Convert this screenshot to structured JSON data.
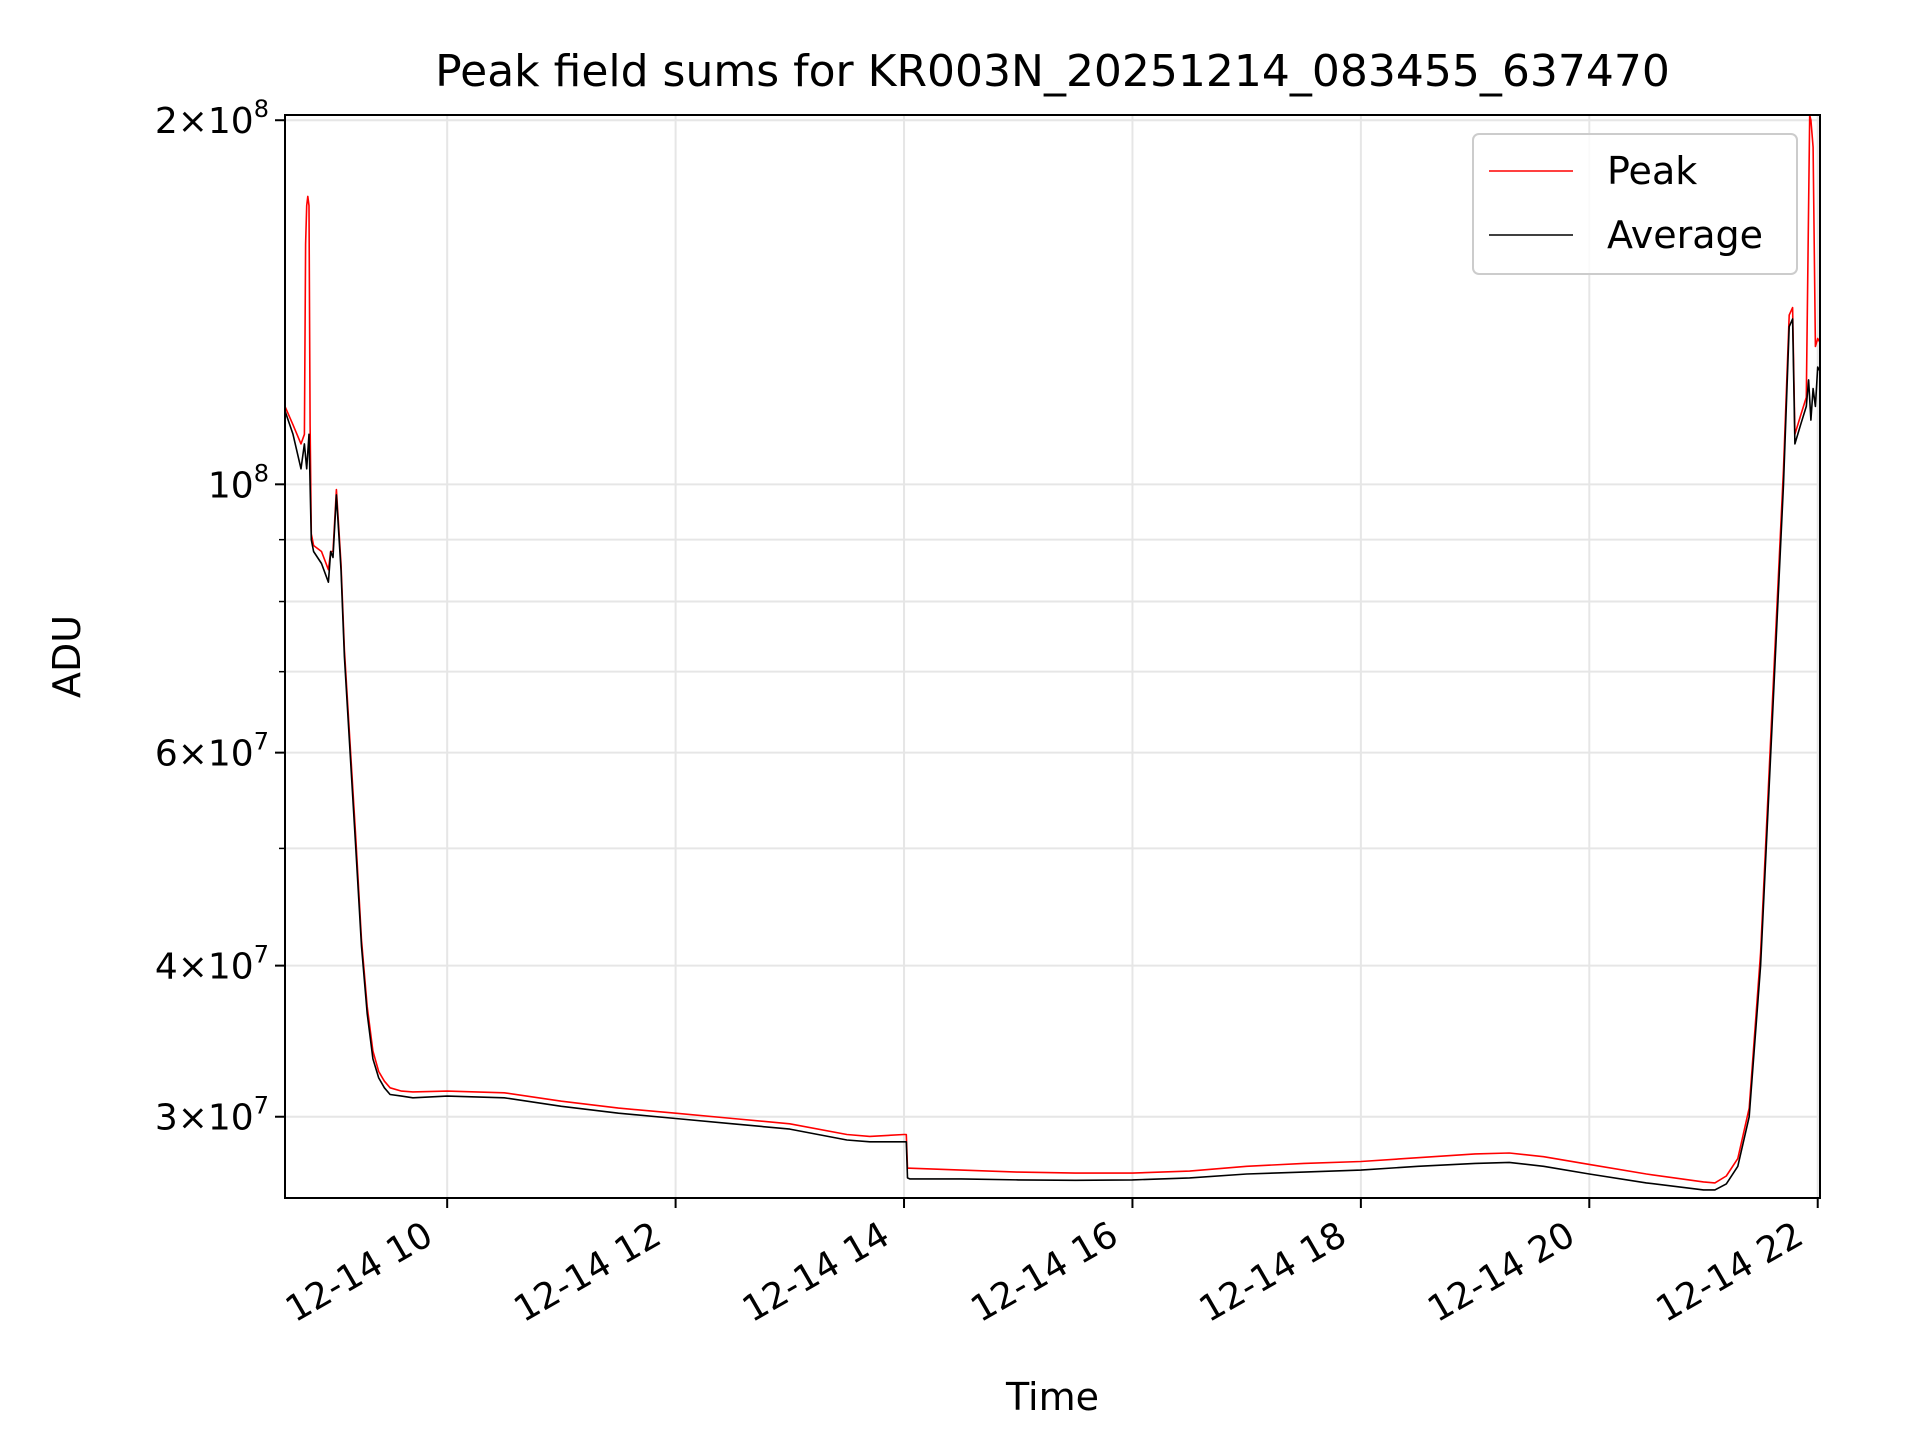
{
  "chart_data": {
    "type": "line",
    "title": "Peak field sums for KR003N_20251214_083455_637470",
    "xlabel": "Time",
    "ylabel": "ADU",
    "yscale": "log",
    "xlim": [
      8.58,
      22.02
    ],
    "ylim": [
      25700000,
      202000000
    ],
    "grid": true,
    "legend_position": "top-right",
    "x_ticks": [
      {
        "value": 10,
        "label": "12-14 10"
      },
      {
        "value": 12,
        "label": "12-14 12"
      },
      {
        "value": 14,
        "label": "12-14 14"
      },
      {
        "value": 16,
        "label": "12-14 16"
      },
      {
        "value": 18,
        "label": "12-14 18"
      },
      {
        "value": 20,
        "label": "12-14 20"
      },
      {
        "value": 22,
        "label": "12-14 22"
      }
    ],
    "y_ticks": [
      {
        "value": 30000000,
        "mantissa": "3",
        "exponent": "7"
      },
      {
        "value": 40000000,
        "mantissa": "4",
        "exponent": "7"
      },
      {
        "value": 60000000,
        "mantissa": "6",
        "exponent": "7"
      },
      {
        "value": 100000000,
        "mantissa": "",
        "exponent": "8"
      },
      {
        "value": 200000000,
        "mantissa": "2",
        "exponent": "8"
      }
    ],
    "y_minor_ticks": [
      50000000,
      70000000,
      80000000,
      90000000
    ],
    "series": [
      {
        "name": "Average",
        "color": "#000000",
        "x": [
          8.58,
          8.65,
          8.72,
          8.75,
          8.77,
          8.79,
          8.81,
          8.83,
          8.9,
          8.96,
          8.98,
          9.0,
          9.03,
          9.07,
          9.1,
          9.15,
          9.2,
          9.25,
          9.3,
          9.35,
          9.4,
          9.45,
          9.5,
          9.6,
          9.7,
          10.0,
          10.5,
          11.0,
          11.5,
          12.0,
          12.5,
          13.0,
          13.5,
          13.7,
          14.0,
          14.02,
          14.03,
          14.05,
          14.5,
          15.0,
          15.5,
          16.0,
          16.5,
          17.0,
          17.5,
          18.0,
          18.5,
          19.0,
          19.3,
          19.6,
          20.0,
          20.5,
          21.0,
          21.1,
          21.2,
          21.3,
          21.4,
          21.5,
          21.6,
          21.7,
          21.75,
          21.78,
          21.8,
          21.85,
          21.9,
          21.92,
          21.94,
          21.96,
          21.98,
          22.0,
          22.02
        ],
        "y": [
          115000000,
          110000000,
          103000000,
          108000000,
          103000000,
          110000000,
          90000000,
          88000000,
          86000000,
          83000000,
          88000000,
          87000000,
          98000000,
          85000000,
          72000000,
          60000000,
          50000000,
          41500000,
          36500000,
          33500000,
          32300000,
          31700000,
          31300000,
          31200000,
          31100000,
          31200000,
          31100000,
          30600000,
          30200000,
          29900000,
          29600000,
          29300000,
          28700000,
          28600000,
          28600000,
          28600000,
          26700000,
          26650000,
          26650000,
          26600000,
          26580000,
          26600000,
          26700000,
          26900000,
          27000000,
          27100000,
          27300000,
          27450000,
          27500000,
          27300000,
          26900000,
          26450000,
          26100000,
          26100000,
          26400000,
          27300000,
          30000000,
          40000000,
          63000000,
          100000000,
          135000000,
          137000000,
          108000000,
          112000000,
          116000000,
          122000000,
          113000000,
          120000000,
          116000000,
          125000000,
          124000000
        ]
      },
      {
        "name": "Peak",
        "color": "#ff0000",
        "x": [
          8.58,
          8.65,
          8.72,
          8.75,
          8.76,
          8.77,
          8.78,
          8.79,
          8.8,
          8.81,
          8.83,
          8.9,
          8.96,
          8.98,
          9.0,
          9.03,
          9.07,
          9.1,
          9.15,
          9.2,
          9.25,
          9.3,
          9.35,
          9.4,
          9.45,
          9.5,
          9.6,
          9.7,
          10.0,
          10.5,
          11.0,
          11.5,
          12.0,
          12.5,
          13.0,
          13.5,
          13.7,
          14.0,
          14.02,
          14.03,
          14.05,
          14.5,
          15.0,
          15.5,
          16.0,
          16.5,
          17.0,
          17.5,
          18.0,
          18.5,
          19.0,
          19.3,
          19.6,
          20.0,
          20.5,
          21.0,
          21.1,
          21.2,
          21.3,
          21.4,
          21.5,
          21.6,
          21.7,
          21.75,
          21.78,
          21.8,
          21.85,
          21.9,
          21.93,
          21.94,
          21.95,
          21.96,
          21.98,
          22.0,
          22.02
        ],
        "y": [
          116000000,
          112000000,
          108000000,
          110000000,
          158000000,
          170000000,
          173000000,
          170000000,
          112000000,
          91000000,
          89000000,
          88000000,
          85000000,
          88000000,
          88000000,
          99000000,
          86000000,
          73000000,
          61000000,
          51000000,
          42000000,
          37000000,
          34000000,
          32700000,
          32100000,
          31700000,
          31500000,
          31450000,
          31500000,
          31400000,
          30900000,
          30500000,
          30200000,
          29900000,
          29600000,
          29000000,
          28900000,
          29000000,
          29000000,
          27200000,
          27200000,
          27100000,
          27000000,
          26950000,
          26950000,
          27050000,
          27300000,
          27450000,
          27550000,
          27750000,
          27950000,
          28000000,
          27800000,
          27400000,
          26900000,
          26500000,
          26450000,
          26800000,
          27700000,
          30500000,
          41000000,
          65000000,
          103000000,
          138000000,
          140000000,
          110000000,
          114000000,
          118000000,
          202000000,
          200000000,
          195000000,
          190000000,
          130000000,
          132000000,
          131000000
        ]
      }
    ],
    "legend": [
      "Peak",
      "Average"
    ]
  }
}
